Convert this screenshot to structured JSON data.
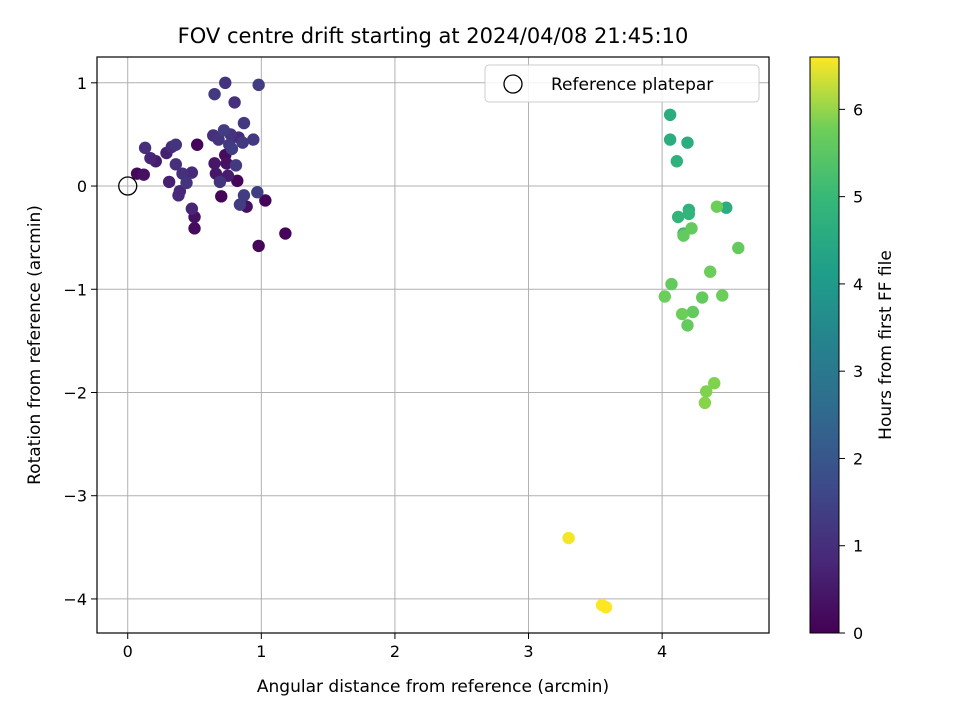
{
  "chart_data": {
    "type": "scatter",
    "title": "FOV centre drift starting at 2024/04/08 21:45:10",
    "xlabel": "Angular distance from reference (arcmin)",
    "ylabel": "Rotation from reference (arcmin)",
    "xlim": [
      -0.23,
      4.8
    ],
    "ylim": [
      -4.33,
      1.25
    ],
    "xticks": [
      0,
      1,
      2,
      3,
      4
    ],
    "yticks": [
      1,
      0,
      -1,
      -2,
      -3,
      -4
    ],
    "xtick_labels": [
      "0",
      "1",
      "2",
      "3",
      "4"
    ],
    "ytick_labels": [
      "1",
      "0",
      "−1",
      "−2",
      "−3",
      "−4"
    ],
    "grid": true,
    "legend": {
      "label": "Reference platepar",
      "position": "top-right",
      "marker": "open-circle"
    },
    "reference_point": {
      "x": 0,
      "y": 0
    },
    "colorbar": {
      "label": "Hours from first FF file",
      "colormap": "viridis",
      "range": [
        0,
        6.6
      ],
      "ticks": [
        0,
        1,
        2,
        3,
        4,
        5,
        6
      ],
      "tick_labels": [
        "0",
        "1",
        "2",
        "3",
        "4",
        "5",
        "6"
      ]
    },
    "points": [
      {
        "x": 0.07,
        "y": 0.12,
        "h": 0.15
      },
      {
        "x": 0.12,
        "y": 0.11,
        "h": 0.3
      },
      {
        "x": 0.13,
        "y": 0.37,
        "h": 0.9
      },
      {
        "x": 0.17,
        "y": 0.27,
        "h": 0.7
      },
      {
        "x": 0.21,
        "y": 0.24,
        "h": 0.5
      },
      {
        "x": 0.29,
        "y": 0.32,
        "h": 0.6
      },
      {
        "x": 0.31,
        "y": 0.04,
        "h": 0.6
      },
      {
        "x": 0.33,
        "y": 0.38,
        "h": 0.8
      },
      {
        "x": 0.36,
        "y": 0.4,
        "h": 1.0
      },
      {
        "x": 0.36,
        "y": 0.21,
        "h": 0.9
      },
      {
        "x": 0.38,
        "y": -0.09,
        "h": 0.8
      },
      {
        "x": 0.39,
        "y": -0.05,
        "h": 0.7
      },
      {
        "x": 0.41,
        "y": 0.12,
        "h": 0.9
      },
      {
        "x": 0.44,
        "y": 0.03,
        "h": 1.0
      },
      {
        "x": 0.48,
        "y": 0.13,
        "h": 0.8
      },
      {
        "x": 0.48,
        "y": -0.22,
        "h": 0.7
      },
      {
        "x": 0.5,
        "y": -0.3,
        "h": 0.3
      },
      {
        "x": 0.5,
        "y": -0.41,
        "h": 0.2
      },
      {
        "x": 0.52,
        "y": 0.4,
        "h": 0.1
      },
      {
        "x": 0.64,
        "y": 0.49,
        "h": 0.9
      },
      {
        "x": 0.65,
        "y": 0.89,
        "h": 1.1
      },
      {
        "x": 0.65,
        "y": 0.22,
        "h": 0.4
      },
      {
        "x": 0.66,
        "y": 0.12,
        "h": 0.4
      },
      {
        "x": 0.68,
        "y": 0.45,
        "h": 1.0
      },
      {
        "x": 0.69,
        "y": 0.04,
        "h": 1.0
      },
      {
        "x": 0.7,
        "y": -0.1,
        "h": 0.1
      },
      {
        "x": 0.72,
        "y": 0.54,
        "h": 1.2
      },
      {
        "x": 0.73,
        "y": 1.0,
        "h": 1.0
      },
      {
        "x": 0.73,
        "y": 0.3,
        "h": 0.2
      },
      {
        "x": 0.74,
        "y": 0.22,
        "h": 0.3
      },
      {
        "x": 0.75,
        "y": 0.1,
        "h": 0.5
      },
      {
        "x": 0.76,
        "y": 0.4,
        "h": 1.1
      },
      {
        "x": 0.77,
        "y": 0.5,
        "h": 1.0
      },
      {
        "x": 0.78,
        "y": 0.36,
        "h": 1.2
      },
      {
        "x": 0.8,
        "y": 0.81,
        "h": 0.9
      },
      {
        "x": 0.81,
        "y": 0.2,
        "h": 1.1
      },
      {
        "x": 0.82,
        "y": 0.05,
        "h": 0.1
      },
      {
        "x": 0.83,
        "y": 0.47,
        "h": 0.8
      },
      {
        "x": 0.84,
        "y": -0.18,
        "h": 1.2
      },
      {
        "x": 0.86,
        "y": 0.42,
        "h": 1.1
      },
      {
        "x": 0.87,
        "y": 0.61,
        "h": 1.1
      },
      {
        "x": 0.87,
        "y": -0.09,
        "h": 1.2
      },
      {
        "x": 0.89,
        "y": -0.2,
        "h": 0.3
      },
      {
        "x": 0.94,
        "y": 0.45,
        "h": 1.1
      },
      {
        "x": 0.97,
        "y": -0.06,
        "h": 1.2
      },
      {
        "x": 0.98,
        "y": 0.98,
        "h": 1.2
      },
      {
        "x": 0.98,
        "y": -0.58,
        "h": 0.1
      },
      {
        "x": 1.03,
        "y": -0.14,
        "h": 0.1
      },
      {
        "x": 1.18,
        "y": -0.46,
        "h": 0.1
      },
      {
        "x": 4.06,
        "y": 0.69,
        "h": 4.1
      },
      {
        "x": 4.06,
        "y": 0.45,
        "h": 4.1
      },
      {
        "x": 4.11,
        "y": 0.24,
        "h": 4.2
      },
      {
        "x": 4.19,
        "y": 0.42,
        "h": 4.1
      },
      {
        "x": 4.12,
        "y": -0.3,
        "h": 4.3
      },
      {
        "x": 4.2,
        "y": -0.23,
        "h": 4.2
      },
      {
        "x": 4.2,
        "y": -0.27,
        "h": 4.3
      },
      {
        "x": 4.16,
        "y": -0.46,
        "h": 4.4
      },
      {
        "x": 4.16,
        "y": -0.48,
        "h": 5.0
      },
      {
        "x": 4.22,
        "y": -0.41,
        "h": 5.0
      },
      {
        "x": 4.41,
        "y": -0.2,
        "h": 5.1
      },
      {
        "x": 4.48,
        "y": -0.21,
        "h": 4.1
      },
      {
        "x": 4.57,
        "y": -0.6,
        "h": 5.0
      },
      {
        "x": 4.36,
        "y": -0.83,
        "h": 5.1
      },
      {
        "x": 4.07,
        "y": -0.95,
        "h": 5.0
      },
      {
        "x": 4.02,
        "y": -1.07,
        "h": 5.1
      },
      {
        "x": 4.45,
        "y": -1.06,
        "h": 5.1
      },
      {
        "x": 4.3,
        "y": -1.08,
        "h": 5.0
      },
      {
        "x": 4.15,
        "y": -1.24,
        "h": 5.1
      },
      {
        "x": 4.23,
        "y": -1.22,
        "h": 5.0
      },
      {
        "x": 4.19,
        "y": -1.35,
        "h": 5.0
      },
      {
        "x": 4.39,
        "y": -1.91,
        "h": 5.3
      },
      {
        "x": 4.33,
        "y": -1.99,
        "h": 5.3
      },
      {
        "x": 4.32,
        "y": -2.1,
        "h": 5.4
      },
      {
        "x": 3.3,
        "y": -3.41,
        "h": 6.5
      },
      {
        "x": 3.55,
        "y": -4.06,
        "h": 6.6
      },
      {
        "x": 3.58,
        "y": -4.08,
        "h": 6.6
      }
    ]
  }
}
